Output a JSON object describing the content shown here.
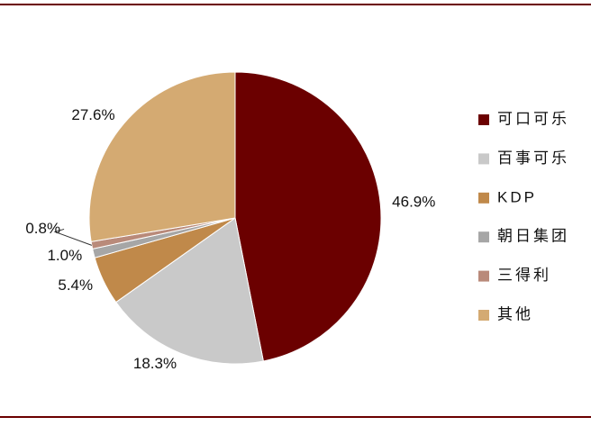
{
  "chart_data": {
    "type": "pie",
    "categories": [
      "可口可乐",
      "百事可乐",
      "KDP",
      "朝日集团",
      "三得利",
      "其他"
    ],
    "values": [
      46.9,
      18.3,
      5.4,
      1.0,
      0.8,
      27.6
    ],
    "value_labels": [
      "46.9%",
      "18.3%",
      "5.4%",
      "1.0%",
      "0.8%",
      "27.6%"
    ],
    "colors": [
      "#6b0000",
      "#c9c9c9",
      "#c0894a",
      "#a6a6a6",
      "#b98a7a",
      "#d4aa72"
    ],
    "legend": "right"
  }
}
